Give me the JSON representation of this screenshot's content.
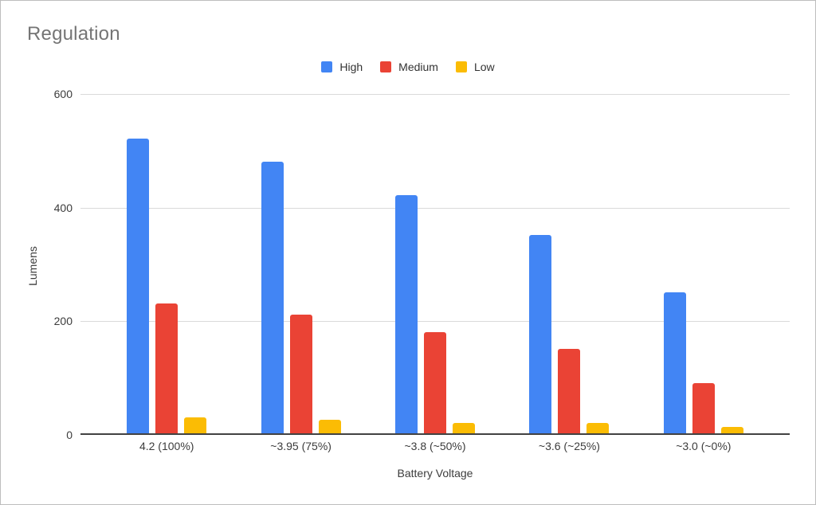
{
  "chart_data": {
    "type": "bar",
    "title": "Regulation",
    "categories": [
      "4.2 (100%)",
      "~3.95 (75%)",
      "~3.8 (~50%)",
      "~3.6 (~25%)",
      "~3.0 (~0%)"
    ],
    "series": [
      {
        "name": "High",
        "color": "#4285F4",
        "values": [
          520,
          480,
          420,
          350,
          250
        ]
      },
      {
        "name": "Medium",
        "color": "#EA4335",
        "values": [
          230,
          210,
          180,
          150,
          90
        ]
      },
      {
        "name": "Low",
        "color": "#FBBC04",
        "values": [
          30,
          25,
          20,
          20,
          13
        ]
      }
    ],
    "xlabel": "Battery Voltage",
    "ylabel": "Lumens",
    "ylim": [
      0,
      600
    ],
    "yticks": [
      0,
      200,
      400,
      600
    ],
    "grid": true,
    "legend_position": "top",
    "legend_labels": [
      "High",
      "Medium",
      "Low"
    ]
  }
}
